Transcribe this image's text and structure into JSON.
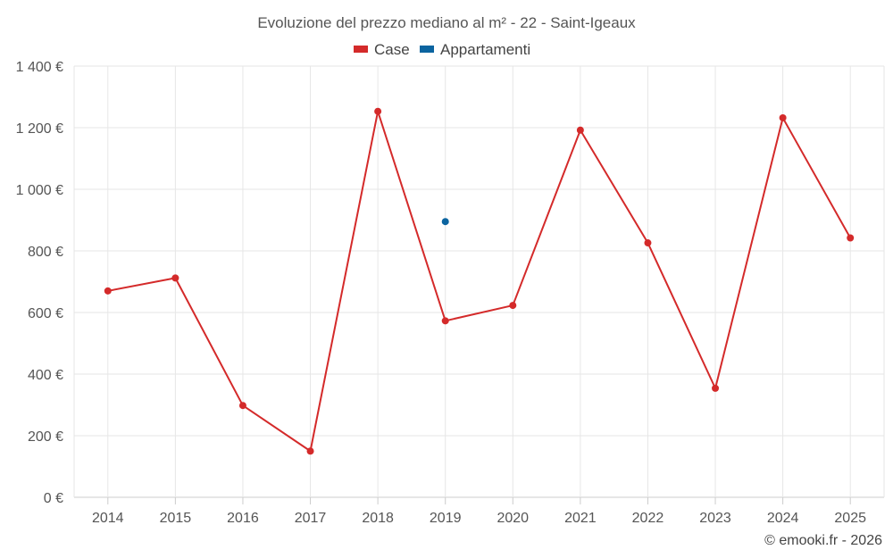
{
  "chart_data": {
    "type": "line",
    "title": "Evoluzione del prezzo mediano al m² - 22 - Saint-Igeaux",
    "x": [
      "2014",
      "2015",
      "2016",
      "2017",
      "2018",
      "2019",
      "2020",
      "2021",
      "2022",
      "2023",
      "2024",
      "2025"
    ],
    "series": [
      {
        "name": "Case",
        "color": "#d42a2a",
        "values": [
          670,
          712,
          298,
          150,
          1253,
          573,
          623,
          1192,
          826,
          354,
          1232,
          842
        ]
      },
      {
        "name": "Appartamenti",
        "color": "#0b64a0",
        "values": [
          null,
          null,
          null,
          null,
          null,
          895,
          null,
          null,
          null,
          null,
          null,
          null
        ]
      }
    ],
    "ylim": [
      0,
      1400
    ],
    "yticks": [
      0,
      200,
      400,
      600,
      800,
      1000,
      1200,
      1400
    ],
    "ytick_labels": [
      "0 €",
      "200 €",
      "400 €",
      "600 €",
      "800 €",
      "1 000 €",
      "1 200 €",
      "1 400 €"
    ],
    "grid": true,
    "legend_position": "top-center"
  },
  "credit": "© emooki.fr - 2026"
}
